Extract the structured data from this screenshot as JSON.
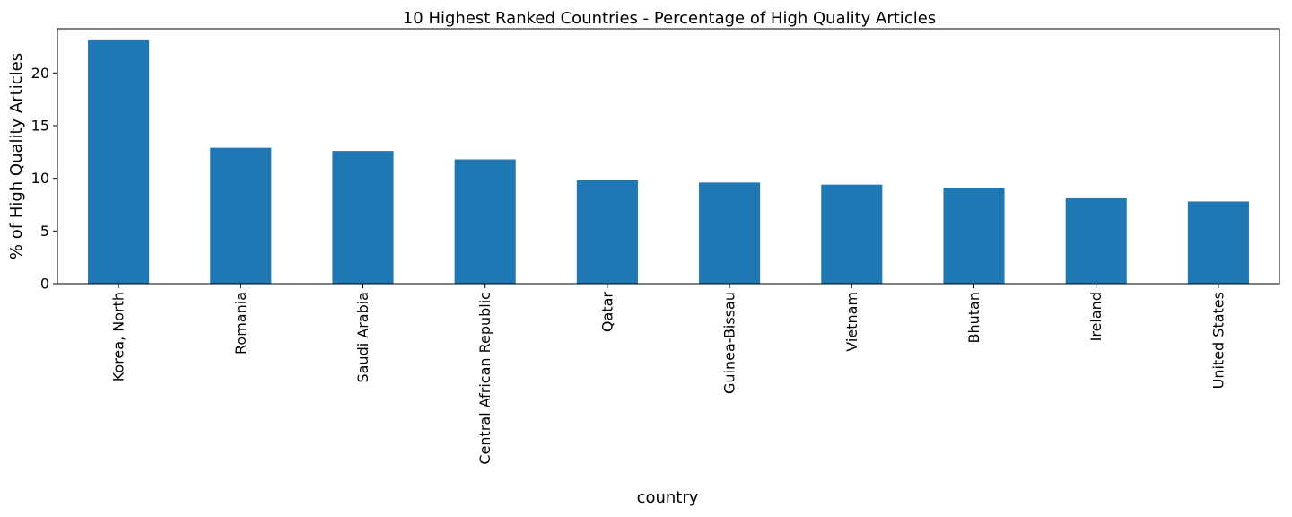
{
  "chart_data": {
    "type": "bar",
    "title": "10 Highest Ranked Countries - Percentage of High Quality Articles",
    "xlabel": "country",
    "ylabel": "% of High Quality Articles",
    "categories": [
      "Korea, North",
      "Romania",
      "Saudi Arabia",
      "Central African Republic",
      "Qatar",
      "Guinea-Bissau",
      "Vietnam",
      "Bhutan",
      "Ireland",
      "United States"
    ],
    "values": [
      23.1,
      12.9,
      12.6,
      11.8,
      9.8,
      9.6,
      9.4,
      9.1,
      8.1,
      7.8
    ],
    "ylim": [
      0,
      24.2
    ],
    "yticks": [
      0,
      5,
      10,
      15,
      20
    ],
    "grid": false,
    "legend": "none",
    "bar_color": "#1f77b4"
  }
}
